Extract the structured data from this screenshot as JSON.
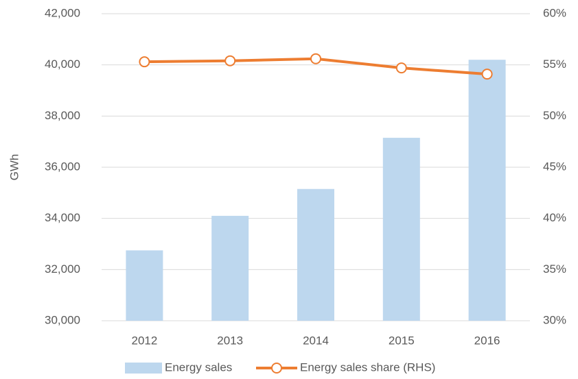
{
  "chart_data": {
    "type": "bar",
    "ylabel": "GWh",
    "categories": [
      "2012",
      "2013",
      "2014",
      "2015",
      "2016"
    ],
    "series": [
      {
        "name": "Energy sales",
        "type": "bar",
        "color": "#bdd7ee",
        "values": [
          32750,
          34100,
          35150,
          37150,
          40200
        ]
      },
      {
        "name": "Energy sales share (RHS)",
        "type": "line",
        "axis": "y2",
        "color": "#ed7d31",
        "values": [
          55.3,
          55.4,
          55.6,
          54.7,
          54.1
        ]
      }
    ],
    "ylim": [
      30000,
      42000
    ],
    "yticks": [
      {
        "value": 30000,
        "label": "30,000"
      },
      {
        "value": 32000,
        "label": "32,000"
      },
      {
        "value": 34000,
        "label": "34,000"
      },
      {
        "value": 36000,
        "label": "36,000"
      },
      {
        "value": 38000,
        "label": "38,000"
      },
      {
        "value": 40000,
        "label": "40,000"
      },
      {
        "value": 42000,
        "label": "42,000"
      }
    ],
    "y2lim": [
      30,
      60
    ],
    "y2ticks": [
      {
        "value": 30,
        "label": "30%"
      },
      {
        "value": 35,
        "label": "35%"
      },
      {
        "value": 40,
        "label": "40%"
      },
      {
        "value": 45,
        "label": "45%"
      },
      {
        "value": 50,
        "label": "50%"
      },
      {
        "value": 55,
        "label": "55%"
      },
      {
        "value": 60,
        "label": "60%"
      }
    ],
    "grid": true,
    "legend": "bottom"
  }
}
